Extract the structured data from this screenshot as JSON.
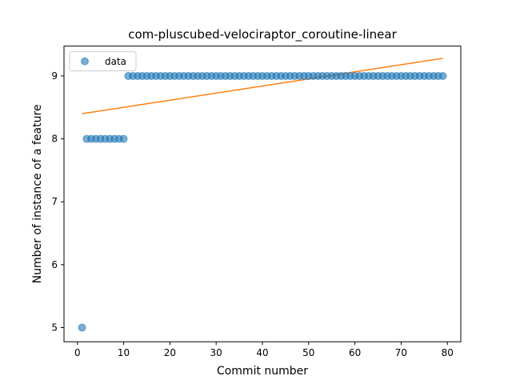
{
  "chart_data": {
    "type": "scatter",
    "title": "com-pluscubed-velociraptor_coroutine-linear",
    "xlabel": "Commit number",
    "ylabel": "Number of instance of a feature",
    "xlim": [
      -2.9,
      82.9
    ],
    "ylim": [
      4.775,
      9.475
    ],
    "x_ticks": [
      0,
      10,
      20,
      30,
      40,
      50,
      60,
      70,
      80
    ],
    "y_ticks": [
      5,
      6,
      7,
      8,
      9
    ],
    "legend": {
      "position": "top-left",
      "entries": [
        "data"
      ]
    },
    "series": [
      {
        "name": "data",
        "kind": "scatter",
        "color": "#1f77b4",
        "points": [
          [
            1,
            5
          ],
          [
            2,
            8
          ],
          [
            3,
            8
          ],
          [
            4,
            8
          ],
          [
            5,
            8
          ],
          [
            6,
            8
          ],
          [
            7,
            8
          ],
          [
            8,
            8
          ],
          [
            9,
            8
          ],
          [
            10,
            8
          ],
          [
            11,
            9
          ],
          [
            12,
            9
          ],
          [
            13,
            9
          ],
          [
            14,
            9
          ],
          [
            15,
            9
          ],
          [
            16,
            9
          ],
          [
            17,
            9
          ],
          [
            18,
            9
          ],
          [
            19,
            9
          ],
          [
            20,
            9
          ],
          [
            21,
            9
          ],
          [
            22,
            9
          ],
          [
            23,
            9
          ],
          [
            24,
            9
          ],
          [
            25,
            9
          ],
          [
            26,
            9
          ],
          [
            27,
            9
          ],
          [
            28,
            9
          ],
          [
            29,
            9
          ],
          [
            30,
            9
          ],
          [
            31,
            9
          ],
          [
            32,
            9
          ],
          [
            33,
            9
          ],
          [
            34,
            9
          ],
          [
            35,
            9
          ],
          [
            36,
            9
          ],
          [
            37,
            9
          ],
          [
            38,
            9
          ],
          [
            39,
            9
          ],
          [
            40,
            9
          ],
          [
            41,
            9
          ],
          [
            42,
            9
          ],
          [
            43,
            9
          ],
          [
            44,
            9
          ],
          [
            45,
            9
          ],
          [
            46,
            9
          ],
          [
            47,
            9
          ],
          [
            48,
            9
          ],
          [
            49,
            9
          ],
          [
            50,
            9
          ],
          [
            51,
            9
          ],
          [
            52,
            9
          ],
          [
            53,
            9
          ],
          [
            54,
            9
          ],
          [
            55,
            9
          ],
          [
            56,
            9
          ],
          [
            57,
            9
          ],
          [
            58,
            9
          ],
          [
            59,
            9
          ],
          [
            60,
            9
          ],
          [
            61,
            9
          ],
          [
            62,
            9
          ],
          [
            63,
            9
          ],
          [
            64,
            9
          ],
          [
            65,
            9
          ],
          [
            66,
            9
          ],
          [
            67,
            9
          ],
          [
            68,
            9
          ],
          [
            69,
            9
          ],
          [
            70,
            9
          ],
          [
            71,
            9
          ],
          [
            72,
            9
          ],
          [
            73,
            9
          ],
          [
            74,
            9
          ],
          [
            75,
            9
          ],
          [
            76,
            9
          ],
          [
            77,
            9
          ],
          [
            78,
            9
          ],
          [
            79,
            9
          ]
        ]
      },
      {
        "kind": "line",
        "color": "#ff7f0e",
        "points": [
          [
            1,
            8.4
          ],
          [
            79,
            9.28
          ]
        ]
      }
    ]
  }
}
